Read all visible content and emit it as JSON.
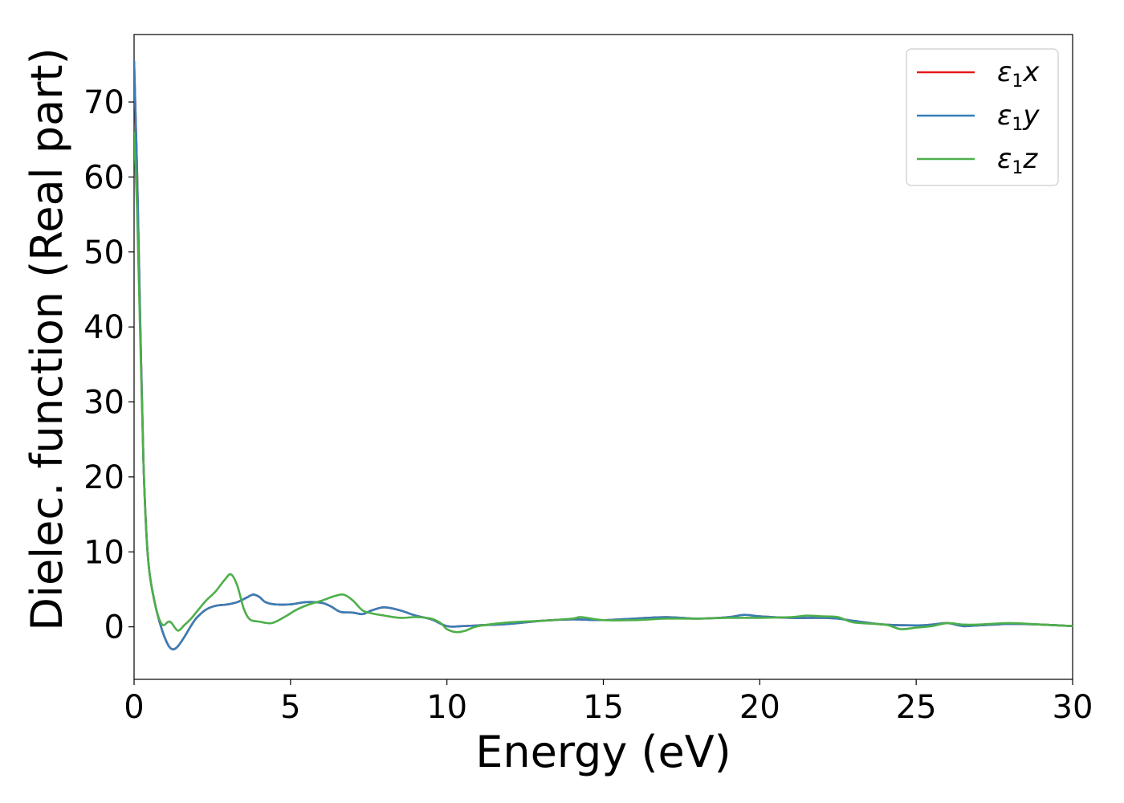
{
  "chart_data": {
    "type": "line",
    "xlabel": "Energy (eV)",
    "ylabel": "Dielec. function (Real part)",
    "xlim": [
      0,
      30
    ],
    "ylim": [
      -7,
      79
    ],
    "xticks": [
      0,
      5,
      10,
      15,
      20,
      25,
      30
    ],
    "yticks": [
      0,
      10,
      20,
      30,
      40,
      50,
      60,
      70
    ],
    "grid": false,
    "legend_position": "top-right",
    "series": [
      {
        "name": "x",
        "legend_base": "ε",
        "legend_sub": "1",
        "color": "#e41a1c",
        "points": [
          [
            0.0,
            75.5
          ],
          [
            0.1,
            60
          ],
          [
            0.2,
            40
          ],
          [
            0.3,
            22
          ],
          [
            0.4,
            12
          ],
          [
            0.5,
            7
          ],
          [
            0.7,
            2.5
          ],
          [
            0.9,
            -0.5
          ],
          [
            1.1,
            -2.5
          ],
          [
            1.25,
            -3.0
          ],
          [
            1.4,
            -2.6
          ],
          [
            1.6,
            -1.4
          ],
          [
            1.8,
            0.0
          ],
          [
            2.0,
            1.2
          ],
          [
            2.3,
            2.3
          ],
          [
            2.6,
            2.8
          ],
          [
            3.0,
            3.0
          ],
          [
            3.3,
            3.3
          ],
          [
            3.6,
            3.9
          ],
          [
            3.8,
            4.3
          ],
          [
            4.0,
            4.0
          ],
          [
            4.2,
            3.3
          ],
          [
            4.5,
            3.0
          ],
          [
            5.0,
            3.0
          ],
          [
            5.5,
            3.3
          ],
          [
            6.0,
            3.2
          ],
          [
            6.3,
            2.7
          ],
          [
            6.6,
            2.0
          ],
          [
            7.0,
            1.9
          ],
          [
            7.3,
            1.7
          ],
          [
            7.6,
            2.2
          ],
          [
            8.0,
            2.6
          ],
          [
            8.5,
            2.2
          ],
          [
            9.0,
            1.5
          ],
          [
            9.5,
            1.0
          ],
          [
            10.0,
            0.1
          ],
          [
            10.5,
            0.1
          ],
          [
            11.0,
            0.2
          ],
          [
            12.0,
            0.4
          ],
          [
            13.0,
            0.8
          ],
          [
            14.0,
            1.0
          ],
          [
            15.0,
            0.9
          ],
          [
            16.0,
            1.1
          ],
          [
            17.0,
            1.3
          ],
          [
            18.0,
            1.1
          ],
          [
            19.0,
            1.3
          ],
          [
            19.5,
            1.6
          ],
          [
            20.0,
            1.4
          ],
          [
            21.0,
            1.2
          ],
          [
            22.0,
            1.2
          ],
          [
            22.5,
            1.1
          ],
          [
            23.0,
            0.8
          ],
          [
            24.0,
            0.3
          ],
          [
            25.0,
            0.2
          ],
          [
            25.5,
            0.3
          ],
          [
            26.0,
            0.5
          ],
          [
            26.5,
            0.1
          ],
          [
            27.0,
            0.2
          ],
          [
            27.5,
            0.3
          ],
          [
            28.0,
            0.4
          ],
          [
            29.0,
            0.3
          ],
          [
            30.0,
            0.1
          ]
        ]
      },
      {
        "name": "y",
        "legend_base": "ε",
        "legend_sub": "1",
        "color": "#377eb8",
        "points": [
          [
            0.0,
            75.5
          ],
          [
            0.1,
            60
          ],
          [
            0.2,
            40
          ],
          [
            0.3,
            22
          ],
          [
            0.4,
            12
          ],
          [
            0.5,
            7
          ],
          [
            0.7,
            2.5
          ],
          [
            0.9,
            -0.5
          ],
          [
            1.1,
            -2.5
          ],
          [
            1.25,
            -3.0
          ],
          [
            1.4,
            -2.6
          ],
          [
            1.6,
            -1.4
          ],
          [
            1.8,
            0.0
          ],
          [
            2.0,
            1.2
          ],
          [
            2.3,
            2.3
          ],
          [
            2.6,
            2.8
          ],
          [
            3.0,
            3.0
          ],
          [
            3.3,
            3.3
          ],
          [
            3.6,
            3.9
          ],
          [
            3.8,
            4.3
          ],
          [
            4.0,
            4.0
          ],
          [
            4.2,
            3.3
          ],
          [
            4.5,
            3.0
          ],
          [
            5.0,
            3.0
          ],
          [
            5.5,
            3.3
          ],
          [
            6.0,
            3.2
          ],
          [
            6.3,
            2.7
          ],
          [
            6.6,
            2.0
          ],
          [
            7.0,
            1.9
          ],
          [
            7.3,
            1.7
          ],
          [
            7.6,
            2.2
          ],
          [
            8.0,
            2.6
          ],
          [
            8.5,
            2.2
          ],
          [
            9.0,
            1.5
          ],
          [
            9.5,
            1.0
          ],
          [
            10.0,
            0.1
          ],
          [
            10.5,
            0.1
          ],
          [
            11.0,
            0.2
          ],
          [
            12.0,
            0.4
          ],
          [
            13.0,
            0.8
          ],
          [
            14.0,
            1.0
          ],
          [
            15.0,
            0.9
          ],
          [
            16.0,
            1.1
          ],
          [
            17.0,
            1.3
          ],
          [
            18.0,
            1.1
          ],
          [
            19.0,
            1.3
          ],
          [
            19.5,
            1.6
          ],
          [
            20.0,
            1.4
          ],
          [
            21.0,
            1.2
          ],
          [
            22.0,
            1.2
          ],
          [
            22.5,
            1.1
          ],
          [
            23.0,
            0.8
          ],
          [
            24.0,
            0.3
          ],
          [
            25.0,
            0.2
          ],
          [
            25.5,
            0.3
          ],
          [
            26.0,
            0.5
          ],
          [
            26.5,
            0.1
          ],
          [
            27.0,
            0.2
          ],
          [
            27.5,
            0.3
          ],
          [
            28.0,
            0.4
          ],
          [
            29.0,
            0.3
          ],
          [
            30.0,
            0.1
          ]
        ]
      },
      {
        "name": "z",
        "legend_base": "ε",
        "legend_sub": "1",
        "color": "#4daf4a",
        "points": [
          [
            0.0,
            66
          ],
          [
            0.1,
            55
          ],
          [
            0.2,
            38
          ],
          [
            0.3,
            22
          ],
          [
            0.4,
            12
          ],
          [
            0.5,
            7
          ],
          [
            0.7,
            2.5
          ],
          [
            0.9,
            0.3
          ],
          [
            1.1,
            0.7
          ],
          [
            1.2,
            0.5
          ],
          [
            1.4,
            -0.5
          ],
          [
            1.6,
            0.2
          ],
          [
            1.8,
            1.0
          ],
          [
            2.0,
            2.0
          ],
          [
            2.3,
            3.5
          ],
          [
            2.6,
            4.7
          ],
          [
            2.9,
            6.3
          ],
          [
            3.1,
            7.0
          ],
          [
            3.3,
            5.5
          ],
          [
            3.5,
            2.5
          ],
          [
            3.7,
            1.0
          ],
          [
            4.0,
            0.7
          ],
          [
            4.4,
            0.5
          ],
          [
            4.8,
            1.3
          ],
          [
            5.2,
            2.3
          ],
          [
            5.6,
            3.0
          ],
          [
            6.0,
            3.5
          ],
          [
            6.4,
            4.1
          ],
          [
            6.7,
            4.3
          ],
          [
            7.0,
            3.5
          ],
          [
            7.3,
            2.2
          ],
          [
            7.6,
            1.8
          ],
          [
            8.0,
            1.5
          ],
          [
            8.5,
            1.2
          ],
          [
            9.0,
            1.3
          ],
          [
            9.5,
            1.1
          ],
          [
            9.8,
            0.5
          ],
          [
            10.0,
            -0.3
          ],
          [
            10.3,
            -0.7
          ],
          [
            10.6,
            -0.5
          ],
          [
            11.0,
            0.1
          ],
          [
            12.0,
            0.6
          ],
          [
            13.0,
            0.8
          ],
          [
            14.0,
            1.1
          ],
          [
            14.3,
            1.3
          ],
          [
            15.0,
            0.9
          ],
          [
            16.0,
            0.9
          ],
          [
            17.0,
            1.1
          ],
          [
            18.0,
            1.1
          ],
          [
            19.0,
            1.2
          ],
          [
            20.0,
            1.2
          ],
          [
            21.0,
            1.3
          ],
          [
            21.5,
            1.5
          ],
          [
            22.0,
            1.4
          ],
          [
            22.5,
            1.3
          ],
          [
            23.0,
            0.6
          ],
          [
            24.0,
            0.3
          ],
          [
            24.5,
            -0.3
          ],
          [
            25.0,
            -0.1
          ],
          [
            25.5,
            0.1
          ],
          [
            26.0,
            0.5
          ],
          [
            26.5,
            0.3
          ],
          [
            27.0,
            0.3
          ],
          [
            28.0,
            0.5
          ],
          [
            29.0,
            0.3
          ],
          [
            30.0,
            0.1
          ]
        ]
      }
    ]
  }
}
